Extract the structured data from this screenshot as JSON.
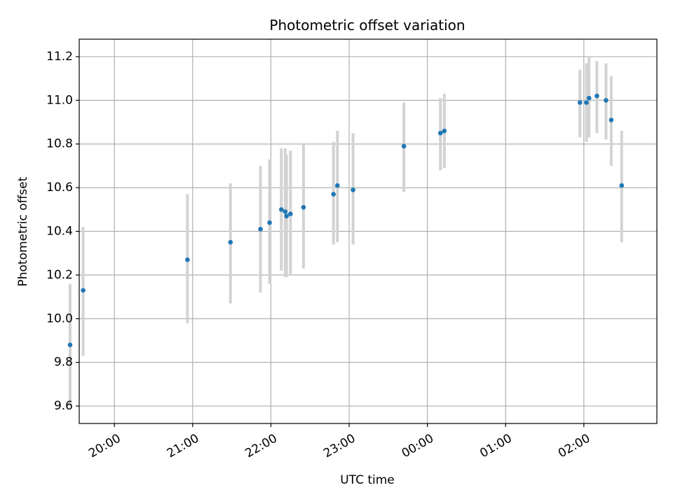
{
  "chart_data": {
    "type": "scatter",
    "title": "Photometric offset variation",
    "xlabel": "UTC time",
    "ylabel": "Photometric offset",
    "x_axis_type": "time",
    "x_range": [
      "19:33",
      "02:56"
    ],
    "ylim": [
      9.52,
      11.28
    ],
    "grid": true,
    "x_ticks": [
      "20:00",
      "21:00",
      "22:00",
      "23:00",
      "00:00",
      "01:00",
      "02:00"
    ],
    "y_ticks": [
      "9.6",
      "9.8",
      "10.0",
      "10.2",
      "10.4",
      "10.6",
      "10.8",
      "11.0",
      "11.2"
    ],
    "colors": {
      "points": "#1f77b4",
      "error_bars": "#d3d3d3",
      "grid": "#b0b0b0"
    },
    "series": [
      {
        "error_type": "vertical",
        "points": [
          {
            "x": "19:26",
            "y": 9.88,
            "ylow": 9.6,
            "yhigh": 10.16
          },
          {
            "x": "19:36",
            "y": 10.13,
            "ylow": 9.83,
            "yhigh": 10.42
          },
          {
            "x": "20:56",
            "y": 10.27,
            "ylow": 9.98,
            "yhigh": 10.57
          },
          {
            "x": "21:29",
            "y": 10.35,
            "ylow": 10.07,
            "yhigh": 10.62
          },
          {
            "x": "21:52",
            "y": 10.41,
            "ylow": 10.12,
            "yhigh": 10.7
          },
          {
            "x": "21:59",
            "y": 10.44,
            "ylow": 10.16,
            "yhigh": 10.73
          },
          {
            "x": "22:08",
            "y": 10.5,
            "ylow": 10.22,
            "yhigh": 10.78
          },
          {
            "x": "22:11",
            "y": 10.49,
            "ylow": 10.19,
            "yhigh": 10.78
          },
          {
            "x": "22:12",
            "y": 10.47,
            "ylow": 10.19,
            "yhigh": 10.75
          },
          {
            "x": "22:15",
            "y": 10.48,
            "ylow": 10.2,
            "yhigh": 10.77
          },
          {
            "x": "22:25",
            "y": 10.51,
            "ylow": 10.23,
            "yhigh": 10.8
          },
          {
            "x": "22:48",
            "y": 10.57,
            "ylow": 10.34,
            "yhigh": 10.81
          },
          {
            "x": "22:51",
            "y": 10.61,
            "ylow": 10.35,
            "yhigh": 10.86
          },
          {
            "x": "23:03",
            "y": 10.59,
            "ylow": 10.34,
            "yhigh": 10.85
          },
          {
            "x": "23:42",
            "y": 10.79,
            "ylow": 10.58,
            "yhigh": 10.99
          },
          {
            "x": "00:10",
            "y": 10.85,
            "ylow": 10.68,
            "yhigh": 11.01
          },
          {
            "x": "00:13",
            "y": 10.86,
            "ylow": 10.69,
            "yhigh": 11.03
          },
          {
            "x": "01:57",
            "y": 10.99,
            "ylow": 10.83,
            "yhigh": 11.14
          },
          {
            "x": "02:02",
            "y": 10.99,
            "ylow": 10.81,
            "yhigh": 11.17
          },
          {
            "x": "02:04",
            "y": 11.01,
            "ylow": 10.83,
            "yhigh": 11.2
          },
          {
            "x": "02:10",
            "y": 11.02,
            "ylow": 10.85,
            "yhigh": 11.18
          },
          {
            "x": "02:17",
            "y": 11.0,
            "ylow": 10.82,
            "yhigh": 11.17
          },
          {
            "x": "02:21",
            "y": 10.91,
            "ylow": 10.7,
            "yhigh": 11.11
          },
          {
            "x": "02:29",
            "y": 10.61,
            "ylow": 10.35,
            "yhigh": 10.86
          }
        ]
      }
    ]
  }
}
